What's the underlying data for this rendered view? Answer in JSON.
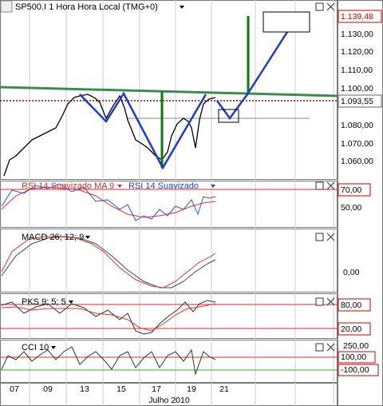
{
  "header": {
    "title": "SP500.I 1 Hora Hora Local (TMG+0)"
  },
  "panels": [
    {
      "axis_labels": [
        "1.130,00",
        "1.120,00",
        "1.110,00",
        "1.100,00",
        "1.080,00",
        "1.070,00",
        "1.060,00"
      ],
      "badges": [
        "1.139,48",
        "1.093,55"
      ]
    },
    {
      "legend": [
        "RSI 14 Suavizado MA 9",
        "RSI 14 Suavizado"
      ],
      "axis_labels": [
        "70,00",
        "50,00"
      ]
    },
    {
      "legend": [
        "MACD 26; 12; 9"
      ],
      "axis_labels": [
        "0,00"
      ]
    },
    {
      "legend": [
        "PKS 9; 5; 5"
      ],
      "axis_labels": [
        "80,00",
        "20,00"
      ]
    },
    {
      "legend": [
        "CCI 10"
      ],
      "axis_labels": [
        "250,00",
        "100,00",
        "-100,00"
      ]
    }
  ],
  "time_axis": {
    "labels": [
      "07",
      "09",
      "13",
      "15",
      "17",
      "19",
      "21"
    ],
    "month": "Julho 2010"
  }
}
